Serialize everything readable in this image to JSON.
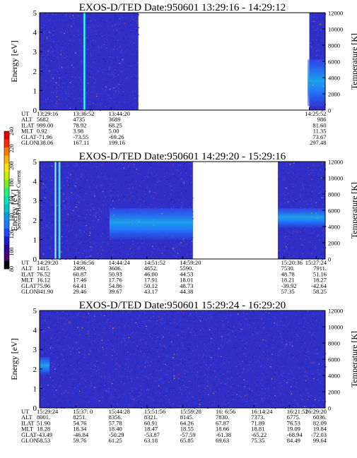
{
  "colors": {
    "background_fill": "#3030c8",
    "colorbar": [
      "#000000",
      "#4a006e",
      "#2a0096",
      "#1a1ad2",
      "#1e46ff",
      "#1e78ff",
      "#00a0e6",
      "#00c8c8",
      "#00e6b4",
      "#28f078",
      "#78f028",
      "#c8f000",
      "#ffe600",
      "#ffb400",
      "#ff7800",
      "#ff2800",
      "#dc0000"
    ]
  },
  "colorbar": {
    "label": "Second Harmonic Current",
    "ticks": [
      "80",
      "100",
      "120",
      "140",
      "160",
      "180",
      "200",
      "220",
      "240"
    ]
  },
  "chart_data": [
    {
      "type": "heatmap",
      "title": "EXOS-D/TED   Date:950601  13:29:16 - 14:29:12",
      "ylabel": "Energy [eV]",
      "y2label": "Temperature [K]",
      "ylim": [
        0,
        5
      ],
      "y2lim": [
        0,
        12000
      ],
      "yticks": [
        "0",
        "1",
        "2",
        "3",
        "4",
        "5"
      ],
      "y2ticks": [
        "0",
        "2000",
        "4000",
        "6000",
        "8000",
        "10000",
        "12000"
      ],
      "time_range": [
        "13:29:16",
        "14:29:12"
      ],
      "data_spans": [
        [
          "13:29:16",
          "13:50:00"
        ],
        [
          "14:25:52",
          "14:29:12"
        ]
      ],
      "bright_lines": [
        "13:38:40"
      ],
      "bands": [
        {
          "from": "14:25:30",
          "to": "14:29:12",
          "ymin": 0.2,
          "ymax": 2.6
        }
      ],
      "dots": "sparse",
      "orbit_rows": [
        {
          "label": "UT",
          "values": [
            "13:29:16",
            "13:36:52",
            "13:44:20",
            "14:25:52"
          ]
        },
        {
          "label": "ALT",
          "values": [
            "5682",
            "4735",
            "3689",
            "986"
          ]
        },
        {
          "label": "ILAT",
          "values": [
            "999.00",
            "78.92",
            "68.25",
            "81.60"
          ]
        },
        {
          "label": "MLT",
          "values": [
            "0.92",
            "3.98",
            "5.00",
            "11.35"
          ]
        },
        {
          "label": "GLAT",
          "values": [
            "-71.96",
            "-73.55",
            "-69.26",
            "73.67"
          ]
        },
        {
          "label": "GLON",
          "values": [
            "138.06",
            "167.11",
            "199.16",
            "297.48"
          ]
        }
      ]
    },
    {
      "type": "heatmap",
      "title": "EXOS-D/TED   Date:950601  14:29:20 - 15:29:16",
      "ylabel": "Energy [eV]",
      "y2label": "Temperature [K]",
      "ylim": [
        0,
        5
      ],
      "y2lim": [
        0,
        12000
      ],
      "yticks": [
        "0",
        "1",
        "2",
        "3",
        "4",
        "5"
      ],
      "y2ticks": [
        "0",
        "2000",
        "4000",
        "6000",
        "8000",
        "10000",
        "12000"
      ],
      "time_range": [
        "14:29:20",
        "15:29:16"
      ],
      "data_spans": [
        [
          "14:29:20",
          "15:01:30"
        ],
        [
          "15:19:20",
          "15:29:16"
        ]
      ],
      "bright_lines": [
        "14:32:40",
        "14:33:30"
      ],
      "bands": [
        {
          "from": "14:44:00",
          "to": "15:01:30",
          "ymin": 1.0,
          "ymax": 2.6
        },
        {
          "from": "15:19:20",
          "to": "15:29:16",
          "ymin": 1.6,
          "ymax": 2.6
        }
      ],
      "dots": "sparse",
      "orbit_rows": [
        {
          "label": "UT",
          "values": [
            "14:29:20",
            "14:36:56",
            "14:44:24",
            "14:51:52",
            "14:59:20",
            "15:20:36",
            "15:27:24"
          ]
        },
        {
          "label": "ALT",
          "values": [
            "1415.",
            "2499.",
            "3606.",
            "4652.",
            "5590.",
            "7530.",
            "7911."
          ]
        },
        {
          "label": "ILAT",
          "values": [
            "76.52",
            "60.87",
            "50.93",
            "46.00",
            "44.53",
            "48.78",
            "51.16"
          ]
        },
        {
          "label": "MLT",
          "values": [
            "16.12",
            "17.46",
            "17.76",
            "17.91",
            "18.01",
            "18.21",
            "18.27"
          ]
        },
        {
          "label": "GLAT",
          "values": [
            "75.96",
            "64.41",
            "54.86",
            "50.12",
            "48.73",
            "-39.92",
            "-42.64"
          ]
        },
        {
          "label": "GLON",
          "values": [
            "341.90",
            "29.46",
            "39.67",
            "43.17",
            "44.38",
            "57.35",
            "58.25"
          ]
        }
      ]
    },
    {
      "type": "heatmap",
      "title": "EXOS-D/TED   Date:950601  15:29:24 - 16:29:20",
      "ylabel": "Energy [eV]",
      "y2label": "Temperature [K]",
      "ylim": [
        0,
        5
      ],
      "y2lim": [
        0,
        12000
      ],
      "yticks": [
        "0",
        "1",
        "2",
        "3",
        "4",
        "5"
      ],
      "y2ticks": [
        "0",
        "2000",
        "4000",
        "6000",
        "8000",
        "10000",
        "12000"
      ],
      "time_range": [
        "15:29:24",
        "16:29:20"
      ],
      "data_spans": [
        [
          "15:29:24",
          "16:29:20"
        ]
      ],
      "bright_lines": [],
      "bands": [
        {
          "from": "15:29:24",
          "to": "15:31:30",
          "ymin": 1.7,
          "ymax": 2.6
        }
      ],
      "dots": "sparse",
      "orbit_rows": [
        {
          "label": "UT",
          "values": [
            "15:29:24",
            "15:37: 0",
            "15:44:28",
            "15:51:56",
            "15:59:28",
            "16: 6:56",
            "16:14:24",
            "16:21:52",
            "16:29:20"
          ]
        },
        {
          "label": "ALT",
          "values": [
            "8001.",
            "8251.",
            "8356.",
            "8321.",
            "8145.",
            "7830.",
            "7373.",
            "6775.",
            "6036."
          ]
        },
        {
          "label": "ILAT",
          "values": [
            "51.90",
            "54.76",
            "57.78",
            "60.91",
            "64.26",
            "67.87",
            "71.89",
            "76.53",
            "82.09"
          ]
        },
        {
          "label": "MLT",
          "values": [
            "18.28",
            "18.34",
            "18.40",
            "18.47",
            "18.55",
            "18.66",
            "18.81",
            "19.09",
            "19.84"
          ]
        },
        {
          "label": "GLAT",
          "values": [
            "-43.49",
            "-46.84",
            "-50.29",
            "-53.87",
            "-57.59",
            "-61.38",
            "-65.22",
            "-68.94",
            "-72.03"
          ]
        },
        {
          "label": "GLON",
          "values": [
            "58.53",
            "59.76",
            "61.25",
            "63.18",
            "65.85",
            "69.63",
            "75.35",
            "84.49",
            "99.64"
          ]
        }
      ]
    }
  ]
}
